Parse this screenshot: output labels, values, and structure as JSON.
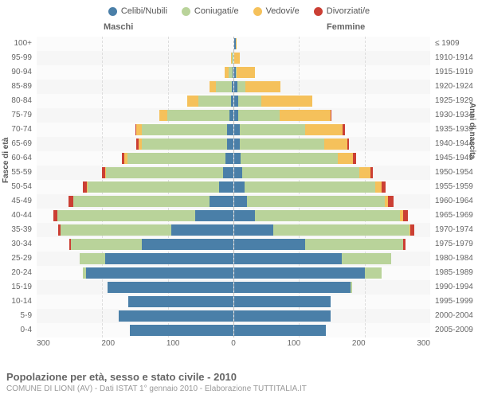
{
  "legend": [
    {
      "label": "Celibi/Nubili",
      "color": "#4a7fa8"
    },
    {
      "label": "Coniugati/e",
      "color": "#b9d39a"
    },
    {
      "label": "Vedovi/e",
      "color": "#f5c15b"
    },
    {
      "label": "Divorziati/e",
      "color": "#cb3f34"
    }
  ],
  "side_labels": {
    "m": "Maschi",
    "f": "Femmine"
  },
  "y_left_title": "Fasce di età",
  "y_right_title": "Anni di nascita",
  "age_labels": [
    "100+",
    "95-99",
    "90-94",
    "85-89",
    "80-84",
    "75-79",
    "70-74",
    "65-69",
    "60-64",
    "55-59",
    "50-54",
    "45-49",
    "40-44",
    "35-39",
    "30-34",
    "25-29",
    "20-24",
    "15-19",
    "10-14",
    "5-9",
    "0-4"
  ],
  "birth_labels": [
    "≤ 1909",
    "1910-1914",
    "1915-1919",
    "1920-1924",
    "1925-1929",
    "1930-1934",
    "1935-1939",
    "1940-1944",
    "1945-1949",
    "1950-1954",
    "1955-1959",
    "1960-1964",
    "1965-1969",
    "1970-1974",
    "1975-1979",
    "1980-1984",
    "1985-1989",
    "1990-1994",
    "1995-1999",
    "2000-2004",
    "2005-2009"
  ],
  "xmax": 300,
  "xticks_m": [
    "300",
    "200",
    "100",
    "0"
  ],
  "xticks_f": [
    "100",
    "200",
    "300"
  ],
  "colors": {
    "single": "#4a7fa8",
    "married": "#b9d39a",
    "widowed": "#f5c15b",
    "divorced": "#cb3f34",
    "bg": "#f6f6f6",
    "grid": "#e0e0e0"
  },
  "rows": [
    {
      "m": {
        "single": 0,
        "married": 0,
        "widowed": 0,
        "divorced": 0
      },
      "f": {
        "single": 2,
        "married": 0,
        "widowed": 2,
        "divorced": 0
      }
    },
    {
      "m": {
        "single": 0,
        "married": 2,
        "widowed": 2,
        "divorced": 0
      },
      "f": {
        "single": 0,
        "married": 0,
        "widowed": 8,
        "divorced": 0
      }
    },
    {
      "m": {
        "single": 1,
        "married": 6,
        "widowed": 6,
        "divorced": 0
      },
      "f": {
        "single": 2,
        "married": 2,
        "widowed": 28,
        "divorced": 0
      }
    },
    {
      "m": {
        "single": 2,
        "married": 25,
        "widowed": 10,
        "divorced": 0
      },
      "f": {
        "single": 5,
        "married": 12,
        "widowed": 54,
        "divorced": 0
      }
    },
    {
      "m": {
        "single": 4,
        "married": 50,
        "widowed": 16,
        "divorced": 0
      },
      "f": {
        "single": 6,
        "married": 36,
        "widowed": 78,
        "divorced": 0
      }
    },
    {
      "m": {
        "single": 6,
        "married": 95,
        "widowed": 12,
        "divorced": 0
      },
      "f": {
        "single": 6,
        "married": 64,
        "widowed": 78,
        "divorced": 1
      }
    },
    {
      "m": {
        "single": 10,
        "married": 130,
        "widowed": 8,
        "divorced": 2
      },
      "f": {
        "single": 8,
        "married": 100,
        "widowed": 58,
        "divorced": 4
      }
    },
    {
      "m": {
        "single": 10,
        "married": 130,
        "widowed": 5,
        "divorced": 3
      },
      "f": {
        "single": 8,
        "married": 130,
        "widowed": 35,
        "divorced": 3
      }
    },
    {
      "m": {
        "single": 12,
        "married": 150,
        "widowed": 4,
        "divorced": 4
      },
      "f": {
        "single": 10,
        "married": 148,
        "widowed": 24,
        "divorced": 5
      }
    },
    {
      "m": {
        "single": 16,
        "married": 178,
        "widowed": 2,
        "divorced": 4
      },
      "f": {
        "single": 12,
        "married": 180,
        "widowed": 16,
        "divorced": 4
      }
    },
    {
      "m": {
        "single": 22,
        "married": 200,
        "widowed": 1,
        "divorced": 7
      },
      "f": {
        "single": 16,
        "married": 200,
        "widowed": 10,
        "divorced": 6
      }
    },
    {
      "m": {
        "single": 36,
        "married": 208,
        "widowed": 0,
        "divorced": 8
      },
      "f": {
        "single": 20,
        "married": 210,
        "widowed": 6,
        "divorced": 8
      }
    },
    {
      "m": {
        "single": 58,
        "married": 210,
        "widowed": 0,
        "divorced": 6
      },
      "f": {
        "single": 32,
        "married": 222,
        "widowed": 4,
        "divorced": 8
      }
    },
    {
      "m": {
        "single": 95,
        "married": 168,
        "widowed": 0,
        "divorced": 4
      },
      "f": {
        "single": 60,
        "married": 208,
        "widowed": 2,
        "divorced": 6
      }
    },
    {
      "m": {
        "single": 140,
        "married": 108,
        "widowed": 0,
        "divorced": 2
      },
      "f": {
        "single": 108,
        "married": 150,
        "widowed": 0,
        "divorced": 4
      }
    },
    {
      "m": {
        "single": 195,
        "married": 40,
        "widowed": 0,
        "divorced": 0
      },
      "f": {
        "single": 165,
        "married": 75,
        "widowed": 0,
        "divorced": 0
      }
    },
    {
      "m": {
        "single": 225,
        "married": 4,
        "widowed": 0,
        "divorced": 0
      },
      "f": {
        "single": 200,
        "married": 25,
        "widowed": 0,
        "divorced": 0
      }
    },
    {
      "m": {
        "single": 192,
        "married": 0,
        "widowed": 0,
        "divorced": 0
      },
      "f": {
        "single": 178,
        "married": 2,
        "widowed": 0,
        "divorced": 0
      }
    },
    {
      "m": {
        "single": 160,
        "married": 0,
        "widowed": 0,
        "divorced": 0
      },
      "f": {
        "single": 148,
        "married": 0,
        "widowed": 0,
        "divorced": 0
      }
    },
    {
      "m": {
        "single": 175,
        "married": 0,
        "widowed": 0,
        "divorced": 0
      },
      "f": {
        "single": 148,
        "married": 0,
        "widowed": 0,
        "divorced": 0
      }
    },
    {
      "m": {
        "single": 158,
        "married": 0,
        "widowed": 0,
        "divorced": 0
      },
      "f": {
        "single": 140,
        "married": 0,
        "widowed": 0,
        "divorced": 0
      }
    }
  ],
  "footer": {
    "title": "Popolazione per età, sesso e stato civile - 2010",
    "sub": "COMUNE DI LIONI (AV) - Dati ISTAT 1° gennaio 2010 - Elaborazione TUTTITALIA.IT"
  }
}
